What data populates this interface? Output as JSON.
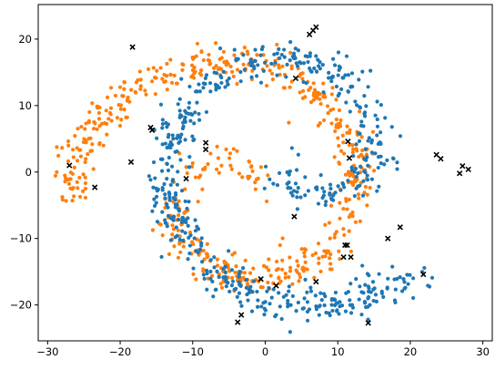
{
  "chart_data": {
    "type": "scatter",
    "title": "",
    "xlabel": "",
    "ylabel": "",
    "xlim": [
      -31.3,
      31.3
    ],
    "ylim": [
      -25.4,
      25.2
    ],
    "xticks": [
      -30,
      -20,
      -10,
      0,
      10,
      20,
      30
    ],
    "yticks": [
      -20,
      -10,
      0,
      10,
      20
    ],
    "grid": false,
    "legend": "none",
    "series": [
      {
        "color": "#ff7f0e",
        "marker": "dot",
        "generator": "spiral",
        "spiral": {
          "center": [
            -3.5,
            -3.5
          ],
          "theta_start": 0.1,
          "theta_end": 9.45,
          "radius_start": 1.2,
          "radius_per_radian": 2.36,
          "noise": 1.3,
          "count": 620
        }
      },
      {
        "color": "#1f77b4",
        "marker": "dot",
        "generator": "spiral",
        "spiral": {
          "center": [
            4.8,
            2.5
          ],
          "theta_start": 0.0,
          "theta_end": 8.6,
          "radius_start": 2.0,
          "radius_per_radian": 2.6,
          "noise": 1.4,
          "count": 620,
          "reflect": true
        }
      },
      {
        "color": "#000000",
        "marker": "x",
        "points": [
          [
            -27,
            1
          ],
          [
            -23.5,
            -2.3
          ],
          [
            -18.3,
            18.8
          ],
          [
            -18.5,
            1.5
          ],
          [
            -15.8,
            6.7
          ],
          [
            -15.6,
            6.3
          ],
          [
            -10.9,
            -1
          ],
          [
            -8.2,
            4.4
          ],
          [
            -8.2,
            3.4
          ],
          [
            -3.3,
            -21.5
          ],
          [
            -3.8,
            -22.6
          ],
          [
            -0.6,
            -16.1
          ],
          [
            1.5,
            -17.1
          ],
          [
            4.2,
            14.1
          ],
          [
            4,
            -6.7
          ],
          [
            6.1,
            20.7
          ],
          [
            6.6,
            21.3
          ],
          [
            7,
            21.8
          ],
          [
            7,
            -16.5
          ],
          [
            11.4,
            4.6
          ],
          [
            11.6,
            2.1
          ],
          [
            11,
            -11
          ],
          [
            11.3,
            -11
          ],
          [
            10.8,
            -12.8
          ],
          [
            11.8,
            -12.8
          ],
          [
            14.2,
            -22.7
          ],
          [
            16.9,
            -10
          ],
          [
            18.6,
            -8.3
          ],
          [
            21.8,
            -15.4
          ],
          [
            23.6,
            2.6
          ],
          [
            24.2,
            2
          ],
          [
            26.8,
            -0.2
          ],
          [
            27.2,
            0.9
          ],
          [
            28,
            0.4
          ]
        ]
      }
    ]
  }
}
